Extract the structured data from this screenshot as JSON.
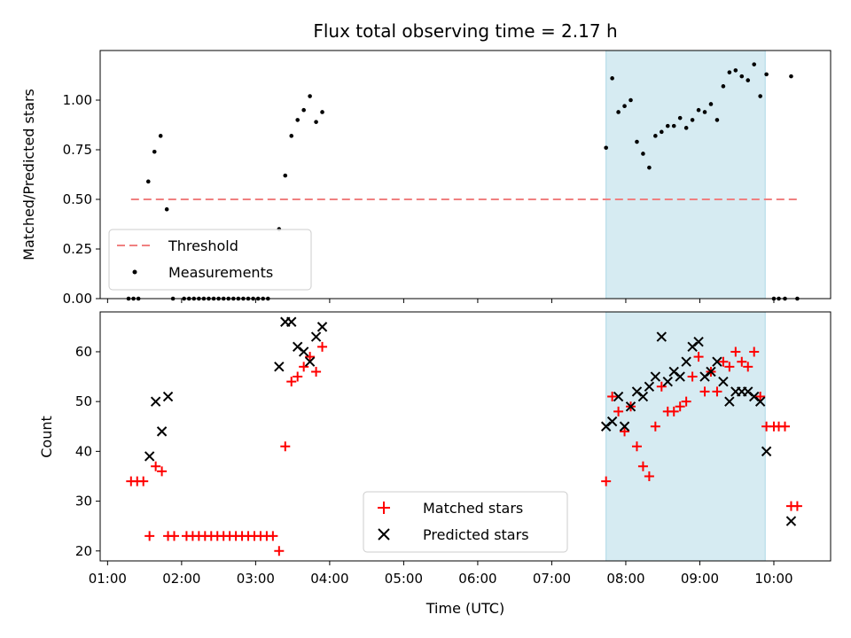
{
  "chart_data": {
    "title": "Flux total observing time = 2.17 h",
    "highlight_span": [
      "07:44",
      "09:53"
    ],
    "x_axis": {
      "label": "Time (UTC)",
      "ticks": [
        "01:00",
        "02:00",
        "03:00",
        "04:00",
        "05:00",
        "06:00",
        "07:00",
        "08:00",
        "09:00",
        "10:00"
      ],
      "range": [
        "00:54",
        "10:46"
      ]
    },
    "panels": [
      {
        "name": "ratio",
        "type": "scatter",
        "ylabel": "Matched/Predicted stars",
        "ylim": [
          0.0,
          1.25
        ],
        "yticks": [
          "0.00",
          "0.25",
          "0.50",
          "0.75",
          "1.00"
        ],
        "threshold": {
          "name": "Threshold",
          "value": 0.5,
          "x": [
            "01:19",
            "10:19"
          ],
          "color": "#f08080"
        },
        "legend": [
          "Threshold",
          "Measurements"
        ],
        "legend_position": "lower-left",
        "series": [
          {
            "name": "Measurements",
            "color": "#000000",
            "points": [
              [
                "01:17",
                0.0
              ],
              [
                "01:21",
                0.0
              ],
              [
                "01:25",
                0.0
              ],
              [
                "01:33",
                0.59
              ],
              [
                "01:38",
                0.74
              ],
              [
                "01:43",
                0.82
              ],
              [
                "01:48",
                0.45
              ],
              [
                "01:53",
                0.0
              ],
              [
                "02:02",
                0.0
              ],
              [
                "02:06",
                0.0
              ],
              [
                "02:10",
                0.0
              ],
              [
                "02:14",
                0.0
              ],
              [
                "02:18",
                0.0
              ],
              [
                "02:22",
                0.0
              ],
              [
                "02:26",
                0.0
              ],
              [
                "02:30",
                0.0
              ],
              [
                "02:34",
                0.0
              ],
              [
                "02:38",
                0.0
              ],
              [
                "02:42",
                0.0
              ],
              [
                "02:46",
                0.0
              ],
              [
                "02:50",
                0.0
              ],
              [
                "02:54",
                0.0
              ],
              [
                "02:58",
                0.0
              ],
              [
                "03:02",
                0.0
              ],
              [
                "03:06",
                0.0
              ],
              [
                "03:10",
                0.0
              ],
              [
                "03:19",
                0.35
              ],
              [
                "03:24",
                0.62
              ],
              [
                "03:29",
                0.82
              ],
              [
                "03:34",
                0.9
              ],
              [
                "03:39",
                0.95
              ],
              [
                "03:44",
                1.02
              ],
              [
                "03:49",
                0.89
              ],
              [
                "03:54",
                0.94
              ],
              [
                "07:44",
                0.76
              ],
              [
                "07:49",
                1.11
              ],
              [
                "07:54",
                0.94
              ],
              [
                "07:59",
                0.97
              ],
              [
                "08:04",
                1.0
              ],
              [
                "08:09",
                0.79
              ],
              [
                "08:14",
                0.73
              ],
              [
                "08:19",
                0.66
              ],
              [
                "08:24",
                0.82
              ],
              [
                "08:29",
                0.84
              ],
              [
                "08:34",
                0.87
              ],
              [
                "08:39",
                0.87
              ],
              [
                "08:44",
                0.91
              ],
              [
                "08:49",
                0.86
              ],
              [
                "08:54",
                0.9
              ],
              [
                "08:59",
                0.95
              ],
              [
                "09:04",
                0.94
              ],
              [
                "09:09",
                0.98
              ],
              [
                "09:14",
                0.9
              ],
              [
                "09:19",
                1.07
              ],
              [
                "09:24",
                1.14
              ],
              [
                "09:29",
                1.15
              ],
              [
                "09:34",
                1.12
              ],
              [
                "09:39",
                1.1
              ],
              [
                "09:44",
                1.18
              ],
              [
                "09:49",
                1.02
              ],
              [
                "09:54",
                1.13
              ],
              [
                "10:00",
                0.0
              ],
              [
                "10:04",
                0.0
              ],
              [
                "10:09",
                0.0
              ],
              [
                "10:14",
                1.12
              ],
              [
                "10:19",
                0.0
              ]
            ]
          }
        ]
      },
      {
        "name": "counts",
        "type": "scatter",
        "ylabel": "Count",
        "ylim": [
          18,
          68
        ],
        "yticks": [
          "20",
          "30",
          "40",
          "50",
          "60"
        ],
        "legend": [
          "Matched stars",
          "Predicted stars"
        ],
        "legend_position": "lower-center",
        "series": [
          {
            "name": "Matched stars",
            "marker": "+",
            "color": "#ff0000",
            "points": [
              [
                "01:19",
                34
              ],
              [
                "01:24",
                34
              ],
              [
                "01:29",
                34
              ],
              [
                "01:34",
                23
              ],
              [
                "01:39",
                37
              ],
              [
                "01:44",
                36
              ],
              [
                "01:49",
                23
              ],
              [
                "01:54",
                23
              ],
              [
                "02:04",
                23
              ],
              [
                "02:09",
                23
              ],
              [
                "02:14",
                23
              ],
              [
                "02:19",
                23
              ],
              [
                "02:24",
                23
              ],
              [
                "02:29",
                23
              ],
              [
                "02:34",
                23
              ],
              [
                "02:39",
                23
              ],
              [
                "02:44",
                23
              ],
              [
                "02:49",
                23
              ],
              [
                "02:54",
                23
              ],
              [
                "02:59",
                23
              ],
              [
                "03:04",
                23
              ],
              [
                "03:09",
                23
              ],
              [
                "03:14",
                23
              ],
              [
                "03:19",
                20
              ],
              [
                "03:24",
                41
              ],
              [
                "03:29",
                54
              ],
              [
                "03:34",
                55
              ],
              [
                "03:39",
                57
              ],
              [
                "03:44",
                59
              ],
              [
                "03:49",
                56
              ],
              [
                "03:54",
                61
              ],
              [
                "07:44",
                34
              ],
              [
                "07:49",
                51
              ],
              [
                "07:54",
                48
              ],
              [
                "07:59",
                44
              ],
              [
                "08:04",
                49
              ],
              [
                "08:09",
                41
              ],
              [
                "08:14",
                37
              ],
              [
                "08:19",
                35
              ],
              [
                "08:24",
                45
              ],
              [
                "08:29",
                53
              ],
              [
                "08:34",
                48
              ],
              [
                "08:39",
                48
              ],
              [
                "08:44",
                49
              ],
              [
                "08:49",
                50
              ],
              [
                "08:54",
                55
              ],
              [
                "08:59",
                59
              ],
              [
                "09:04",
                52
              ],
              [
                "09:09",
                56
              ],
              [
                "09:14",
                52
              ],
              [
                "09:19",
                58
              ],
              [
                "09:24",
                57
              ],
              [
                "09:29",
                60
              ],
              [
                "09:34",
                58
              ],
              [
                "09:39",
                57
              ],
              [
                "09:44",
                60
              ],
              [
                "09:49",
                51
              ],
              [
                "09:54",
                45
              ],
              [
                "10:00",
                45
              ],
              [
                "10:04",
                45
              ],
              [
                "10:09",
                45
              ],
              [
                "10:14",
                29
              ],
              [
                "10:19",
                29
              ]
            ]
          },
          {
            "name": "Predicted stars",
            "marker": "x",
            "color": "#000000",
            "points": [
              [
                "01:34",
                39
              ],
              [
                "01:39",
                50
              ],
              [
                "01:44",
                44
              ],
              [
                "01:49",
                51
              ],
              [
                "03:19",
                57
              ],
              [
                "03:24",
                66
              ],
              [
                "03:29",
                66
              ],
              [
                "03:34",
                61
              ],
              [
                "03:39",
                60
              ],
              [
                "03:44",
                58
              ],
              [
                "03:49",
                63
              ],
              [
                "03:54",
                65
              ],
              [
                "07:44",
                45
              ],
              [
                "07:49",
                46
              ],
              [
                "07:54",
                51
              ],
              [
                "07:59",
                45
              ],
              [
                "08:04",
                49
              ],
              [
                "08:09",
                52
              ],
              [
                "08:14",
                51
              ],
              [
                "08:19",
                53
              ],
              [
                "08:24",
                55
              ],
              [
                "08:29",
                63
              ],
              [
                "08:34",
                54
              ],
              [
                "08:39",
                56
              ],
              [
                "08:44",
                55
              ],
              [
                "08:49",
                58
              ],
              [
                "08:54",
                61
              ],
              [
                "08:59",
                62
              ],
              [
                "09:04",
                55
              ],
              [
                "09:09",
                56
              ],
              [
                "09:14",
                58
              ],
              [
                "09:19",
                54
              ],
              [
                "09:24",
                50
              ],
              [
                "09:29",
                52
              ],
              [
                "09:34",
                52
              ],
              [
                "09:39",
                52
              ],
              [
                "09:44",
                51
              ],
              [
                "09:49",
                50
              ],
              [
                "09:54",
                40
              ],
              [
                "10:14",
                26
              ]
            ]
          }
        ]
      }
    ]
  }
}
